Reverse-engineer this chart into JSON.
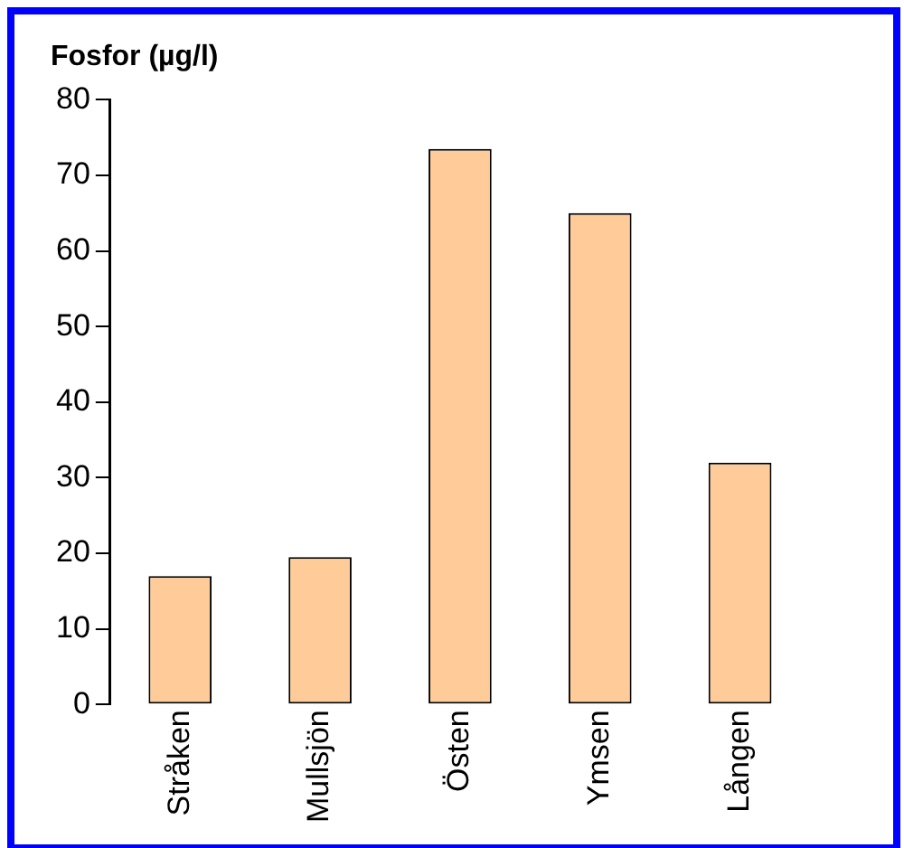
{
  "chart_data": {
    "type": "bar",
    "title": "Fosfor (µg/l)",
    "categories": [
      "Stråken",
      "Mullsjön",
      "Östen",
      "Ymsen",
      "Lången"
    ],
    "values": [
      17,
      19.5,
      73.5,
      65,
      32
    ],
    "color": "#ffcc99",
    "ylim": [
      0,
      80
    ],
    "yticks": [
      0,
      10,
      20,
      30,
      40,
      50,
      60,
      70,
      80
    ],
    "grid": false
  }
}
